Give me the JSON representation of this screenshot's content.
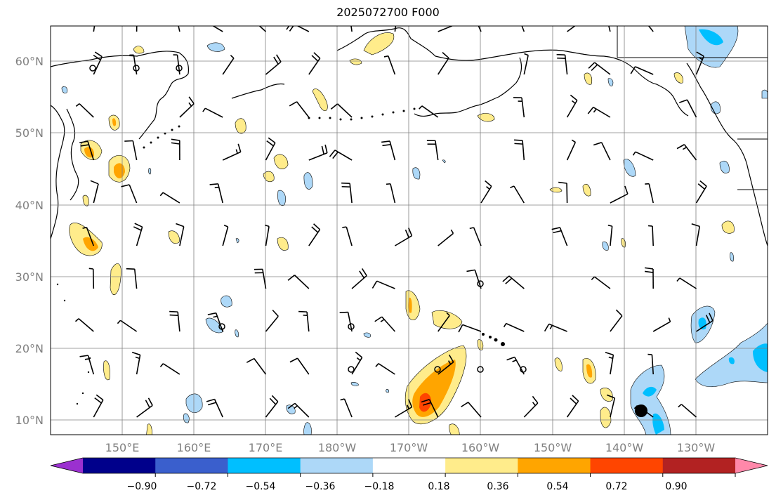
{
  "title": "2025072700 F000",
  "lon_labels": [
    "150°E",
    "160°E",
    "170°E",
    "180°W",
    "170°W",
    "160°W",
    "150°W",
    "140°W",
    "130°W"
  ],
  "lat_labels": [
    "60°N",
    "50°N",
    "40°N",
    "30°N",
    "20°N",
    "10°N"
  ],
  "colorbar": {
    "colors": [
      "#9b30d0",
      "#00008b",
      "#3a5fcd",
      "#00bfff",
      "#add8f8",
      "#ffffff",
      "#ffec8b",
      "#ffa500",
      "#ff4500",
      "#b22222",
      "#ff88aa"
    ],
    "tick_labels": [
      "−0.90",
      "−0.72",
      "−0.54",
      "−0.36",
      "−0.18",
      "0.18",
      "0.36",
      "0.54",
      "0.72",
      "0.90"
    ]
  }
}
